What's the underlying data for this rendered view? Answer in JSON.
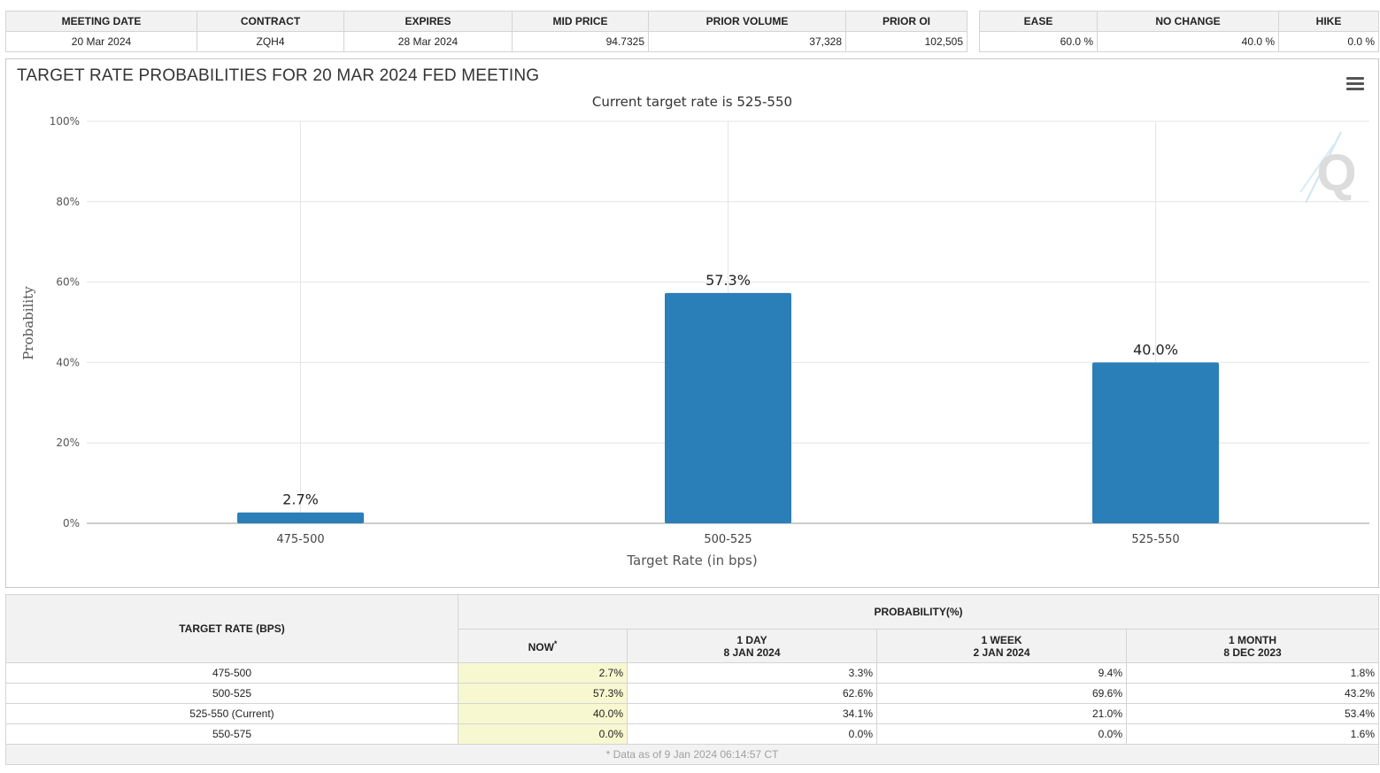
{
  "top_table": {
    "headers": [
      "MEETING DATE",
      "CONTRACT",
      "EXPIRES",
      "MID PRICE",
      "PRIOR VOLUME",
      "PRIOR OI"
    ],
    "row": [
      "20 Mar 2024",
      "ZQH4",
      "28 Mar 2024",
      "94.7325",
      "37,328",
      "102,505"
    ]
  },
  "outlook_table": {
    "headers": [
      "EASE",
      "NO CHANGE",
      "HIKE"
    ],
    "row": [
      "60.0 %",
      "40.0 %",
      "0.0 %"
    ]
  },
  "chart_data": {
    "type": "bar",
    "title": "TARGET RATE PROBABILITIES FOR 20 MAR 2024 FED MEETING",
    "subtitle": "Current target rate is 525-550",
    "xlabel": "Target Rate (in bps)",
    "ylabel": "Probability",
    "categories": [
      "475-500",
      "500-525",
      "525-550"
    ],
    "values": [
      2.7,
      57.3,
      40.0
    ],
    "data_labels": [
      "2.7%",
      "57.3%",
      "40.0%"
    ],
    "yticks": [
      "0%",
      "20%",
      "40%",
      "60%",
      "80%",
      "100%"
    ],
    "ylim": [
      0,
      100
    ],
    "bar_color": "#2a7fb8",
    "grid": true,
    "watermark": "Q"
  },
  "prob_table": {
    "rate_header": "TARGET RATE (BPS)",
    "prob_header": "PROBABILITY(%)",
    "col_now": "NOW",
    "col_now_mark": "*",
    "cols": [
      {
        "line1": "1 DAY",
        "line2": "8 JAN 2024"
      },
      {
        "line1": "1 WEEK",
        "line2": "2 JAN 2024"
      },
      {
        "line1": "1 MONTH",
        "line2": "8 DEC 2023"
      }
    ],
    "rows": [
      {
        "rate": "475-500",
        "now": "2.7%",
        "day": "3.3%",
        "week": "9.4%",
        "month": "1.8%"
      },
      {
        "rate": "500-525",
        "now": "57.3%",
        "day": "62.6%",
        "week": "69.6%",
        "month": "43.2%"
      },
      {
        "rate": "525-550 (Current)",
        "now": "40.0%",
        "day": "34.1%",
        "week": "21.0%",
        "month": "53.4%"
      },
      {
        "rate": "550-575",
        "now": "0.0%",
        "day": "0.0%",
        "week": "0.0%",
        "month": "1.6%"
      }
    ],
    "footnote": "* Data as of 9 Jan 2024 06:14:57 CT"
  }
}
